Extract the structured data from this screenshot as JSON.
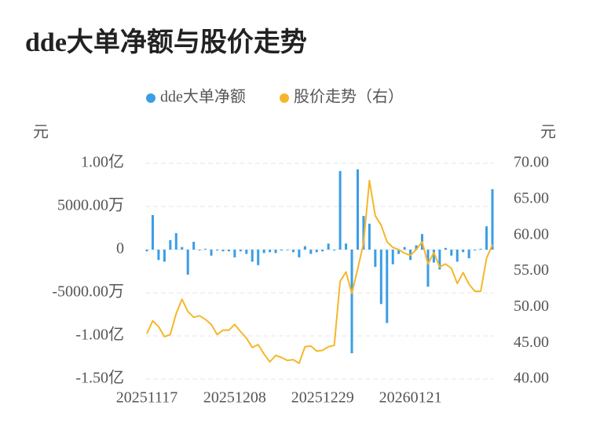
{
  "chart_data": {
    "type": "bar-line",
    "title": "dde大单净额与股价走势",
    "y_unit": "元",
    "y2_unit": "元",
    "categories": [
      "20251117",
      null,
      null,
      null,
      null,
      null,
      null,
      null,
      null,
      null,
      null,
      null,
      null,
      null,
      null,
      "20251208",
      null,
      null,
      null,
      null,
      null,
      null,
      null,
      null,
      null,
      null,
      null,
      null,
      null,
      null,
      "20251229",
      null,
      null,
      null,
      null,
      null,
      null,
      null,
      null,
      null,
      null,
      null,
      null,
      null,
      null,
      "20260121",
      null,
      null,
      null,
      null,
      null,
      null,
      null,
      null,
      null,
      null,
      null,
      null,
      null,
      null
    ],
    "series": [
      {
        "name": "dde大单净额",
        "type": "bar",
        "color": "#3a9de6",
        "values": [
          -200,
          4000,
          -1200,
          -1400,
          1100,
          1900,
          300,
          -2900,
          900,
          -100,
          100,
          -700,
          -100,
          -200,
          -200,
          -900,
          -200,
          -500,
          -1400,
          -1800,
          -400,
          -300,
          -400,
          -100,
          0,
          -300,
          -900,
          400,
          -500,
          -300,
          -200,
          700,
          -100,
          9100,
          700,
          -12000,
          9300,
          3900,
          3000,
          -2000,
          -6300,
          -8500,
          -1700,
          -500,
          300,
          -1200,
          500,
          1800,
          -4300,
          -1500,
          -2300,
          200,
          -700,
          -1400,
          -300,
          -1000,
          -100,
          100,
          2700,
          7000
        ]
      },
      {
        "name": "股价走势（右）",
        "type": "line",
        "axis": "y2",
        "color": "#f5b72a",
        "values": [
          46.3,
          48.1,
          47.3,
          45.9,
          46.2,
          49.1,
          51.1,
          49.4,
          48.6,
          48.8,
          48.3,
          47.6,
          46.2,
          46.8,
          46.8,
          47.6,
          46.6,
          45.7,
          44.4,
          44.8,
          43.5,
          42.4,
          43.3,
          43.0,
          42.6,
          42.7,
          42.2,
          44.5,
          44.6,
          43.9,
          44.0,
          44.5,
          44.7,
          53.6,
          54.9,
          51.9,
          55.3,
          58.9,
          67.6,
          62.7,
          61.4,
          59.1,
          58.3,
          58.0,
          57.5,
          57.2,
          58.0,
          59.1,
          56.0,
          57.6,
          55.6,
          56.0,
          55.4,
          53.3,
          54.8,
          53.2,
          52.2,
          52.2,
          56.8,
          58.7
        ]
      }
    ],
    "ylim": [
      -15000,
      10000
    ],
    "yticks": [
      {
        "value": 10000,
        "label": "1.00亿"
      },
      {
        "value": 5000,
        "label": "5000.00万"
      },
      0,
      {
        "value": -5000,
        "label": "-5000.00万"
      },
      {
        "value": -10000,
        "label": "-1.00亿"
      },
      {
        "value": -15000,
        "label": "-1.50亿"
      }
    ],
    "y2lim": [
      40,
      70
    ],
    "y2ticks": [
      {
        "value": 70,
        "label": "70.00"
      },
      {
        "value": 65,
        "label": "65.00"
      },
      {
        "value": 60,
        "label": "60.00"
      },
      {
        "value": 55,
        "label": "55.00"
      },
      {
        "value": 50,
        "label": "50.00"
      },
      {
        "value": 45,
        "label": "45.00"
      },
      {
        "value": 40,
        "label": "40.00"
      }
    ],
    "grid": true
  }
}
